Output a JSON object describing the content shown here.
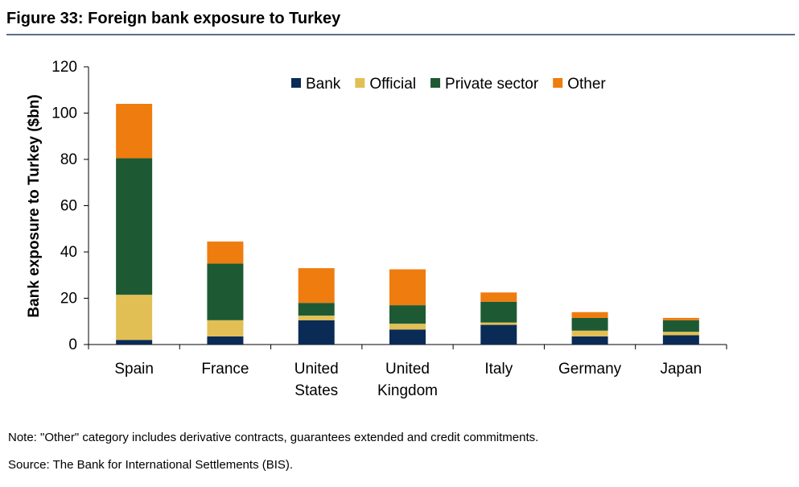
{
  "figure": {
    "title": "Figure 33: Foreign bank exposure to Turkey",
    "note": "Note: \"Other\" category includes derivative contracts, guarantees extended and credit commitments.",
    "source": "Source: The Bank for International Settlements (BIS)."
  },
  "chart_data": {
    "type": "bar",
    "stacked": true,
    "title": "",
    "xlabel": "",
    "ylabel": "Bank exposure to Turkey ($bn)",
    "ylim": [
      0,
      120
    ],
    "yticks": [
      0,
      20,
      40,
      60,
      80,
      100,
      120
    ],
    "grid": false,
    "legend": "top-center",
    "categories": [
      [
        "Spain"
      ],
      [
        "France"
      ],
      [
        "United",
        "States"
      ],
      [
        "United",
        "Kingdom"
      ],
      [
        "Italy"
      ],
      [
        "Germany"
      ],
      [
        "Japan"
      ]
    ],
    "series": [
      {
        "name": "Bank",
        "color": "#0b2b57",
        "values": [
          2,
          3.5,
          10.5,
          6.5,
          8.5,
          3.5,
          4
        ]
      },
      {
        "name": "Official",
        "color": "#e2bf55",
        "values": [
          19.5,
          7,
          2,
          2.5,
          1,
          2.5,
          1.5
        ]
      },
      {
        "name": "Private sector",
        "color": "#1d5a34",
        "values": [
          59,
          24.5,
          5.5,
          8,
          9,
          5.5,
          5
        ]
      },
      {
        "name": "Other",
        "color": "#ef7c0f",
        "values": [
          23.5,
          9.5,
          15,
          15.5,
          4,
          2.5,
          1
        ]
      }
    ]
  }
}
